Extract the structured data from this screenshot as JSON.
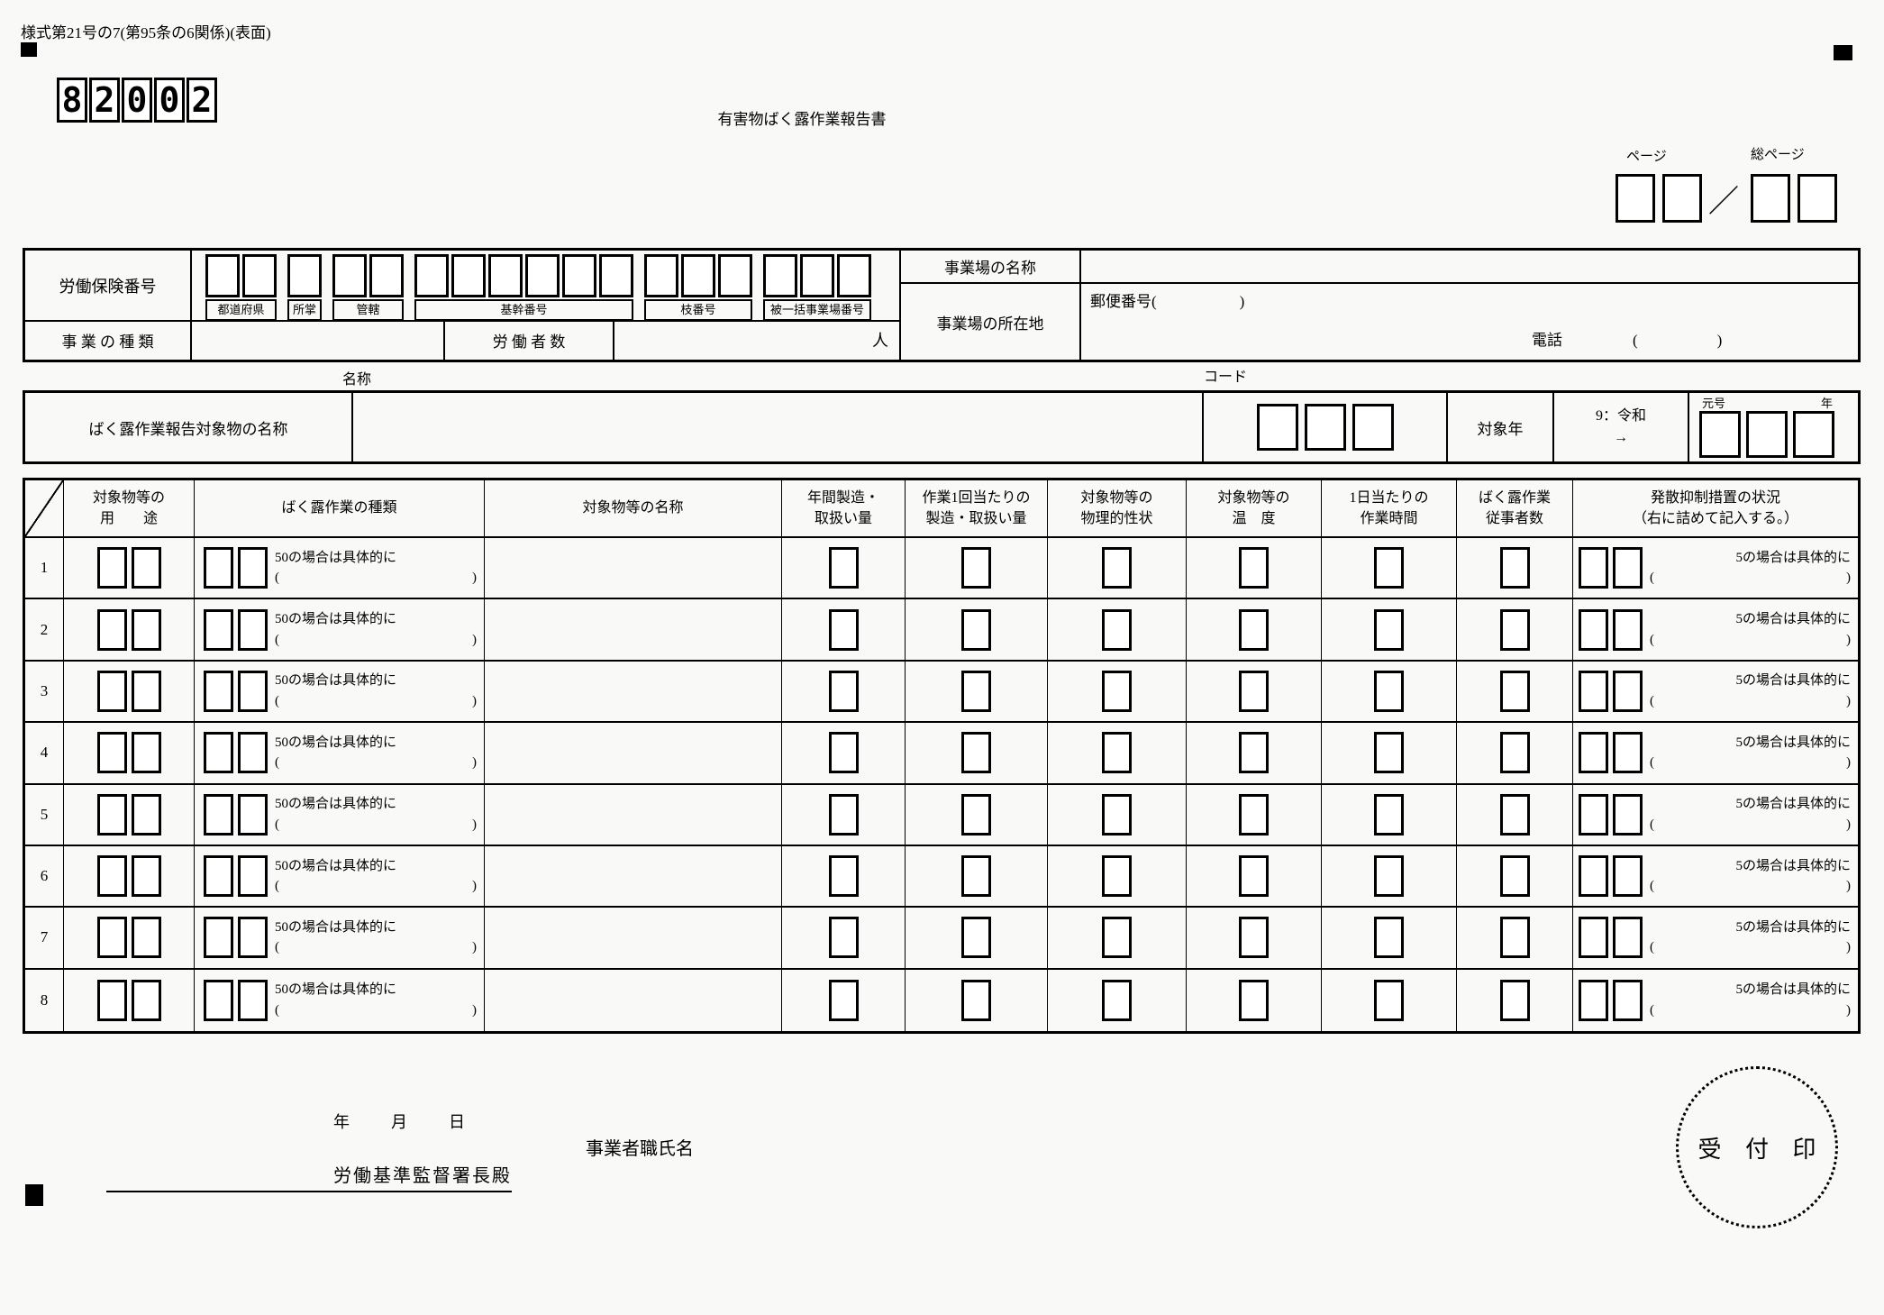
{
  "page_header": {
    "form_number": "様式第21号の7(第95条の6関係)(表面)",
    "doc_code_digits": [
      "8",
      "2",
      "0",
      "0",
      "2"
    ],
    "title": "有害物ばく露作業報告書",
    "page_label": "ページ",
    "total_page_label": "総ページ",
    "page_separator": "／"
  },
  "insurance_section": {
    "insurance_number_label": "労働保険番号",
    "box_groups": [
      {
        "label": "都道府県",
        "boxes": 2
      },
      {
        "label": "所掌",
        "boxes": 1
      },
      {
        "label": "管轄",
        "boxes": 2
      },
      {
        "label": "基幹番号",
        "boxes": 6
      },
      {
        "label": "枝番号",
        "boxes": 3
      },
      {
        "label": "被一括事業場番号",
        "boxes": 3
      }
    ],
    "business_type_label": "事 業 の 種 類",
    "workers_label": "労 働 者 数",
    "workers_unit": "人",
    "office_name_label": "事業場の名称",
    "office_address_label": "事業場の所在地",
    "postal_label": "郵便番号(",
    "postal_close": ")",
    "tel_label": "電話",
    "paren_open": "(",
    "paren_close": ")"
  },
  "substance_section": {
    "name_label": "名称",
    "code_label": "コード",
    "row_label": "ばく露作業報告対象物の名称",
    "target_year_label": "対象年",
    "era_hint": "9：令和",
    "era_arrow": "→",
    "era_label": "元号",
    "year_label": "年"
  },
  "work_table": {
    "headers": [
      {
        "l1": "",
        "l2": ""
      },
      {
        "l1": "対象物等の",
        "l2": "用　　途"
      },
      {
        "l1": "ばく露作業の種類",
        "l2": ""
      },
      {
        "l1": "対象物等の名称",
        "l2": ""
      },
      {
        "l1": "年間製造・",
        "l2": "取扱い量"
      },
      {
        "l1": "作業1回当たりの",
        "l2": "製造・取扱い量"
      },
      {
        "l1": "対象物等の",
        "l2": "物理的性状"
      },
      {
        "l1": "対象物等の",
        "l2": "温　度"
      },
      {
        "l1": "1日当たりの",
        "l2": "作業時間"
      },
      {
        "l1": "ばく露作業",
        "l2": "従事者数"
      },
      {
        "l1": "発散抑制措置の状況",
        "l2": "（右に詰めて記入する。）"
      }
    ],
    "note50_line1": "50の場合は具体的に",
    "note5_line1": "5の場合は具体的に",
    "note_open": "(",
    "note_close": ")",
    "rows": [
      "1",
      "2",
      "3",
      "4",
      "5",
      "6",
      "7",
      "8"
    ]
  },
  "footer": {
    "date_parts": [
      "年",
      "月",
      "日"
    ],
    "employer_label": "事業者職氏名",
    "office_head_label": "労働基準監督署長殿",
    "stamp_text": "受 付 印"
  }
}
